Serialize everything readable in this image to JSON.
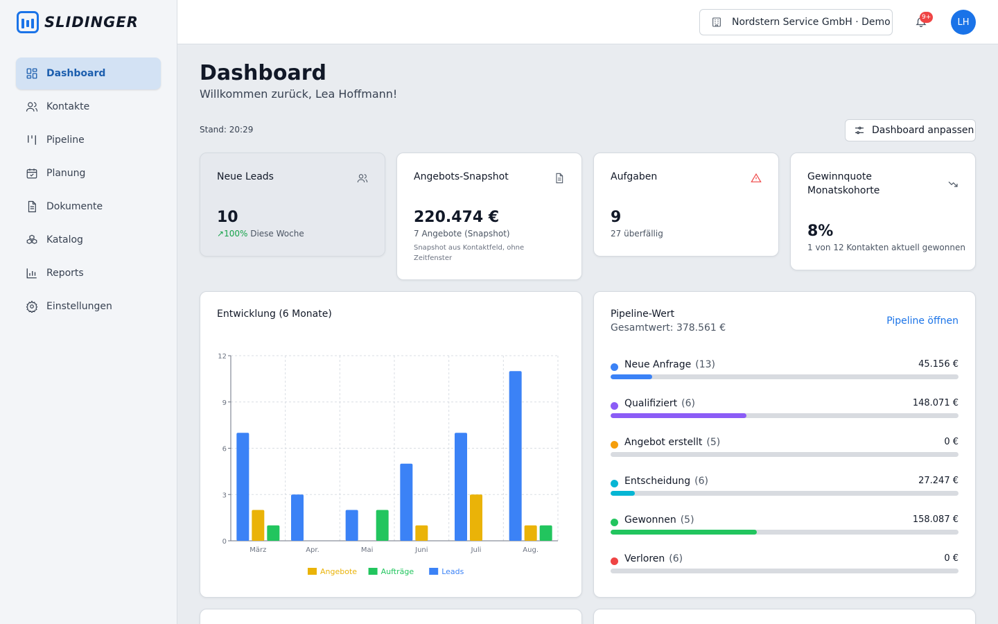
{
  "app": {
    "name": "SLIDINGER"
  },
  "colors": {
    "accent": "#1a73e8",
    "leads": "#3b82f6",
    "angebote": "#eab308",
    "auftraege": "#22c55e"
  },
  "sidebar": {
    "items": [
      {
        "label": "Dashboard",
        "icon": "dashboard-icon",
        "active": true
      },
      {
        "label": "Kontakte",
        "icon": "contacts-icon"
      },
      {
        "label": "Pipeline",
        "icon": "pipeline-icon"
      },
      {
        "label": "Planung",
        "icon": "calendar-icon"
      },
      {
        "label": "Dokumente",
        "icon": "document-icon"
      },
      {
        "label": "Katalog",
        "icon": "catalog-icon"
      },
      {
        "label": "Reports",
        "icon": "reports-icon"
      },
      {
        "label": "Einstellungen",
        "icon": "gear-icon"
      }
    ]
  },
  "topbar": {
    "company": "Nordstern Service GmbH · Demo",
    "notifications_badge": "9+",
    "avatar_initials": "LH"
  },
  "header": {
    "title": "Dashboard",
    "welcome": "Willkommen zurück, Lea Hoffmann!",
    "stand": "Stand: 20:29",
    "customize_label": "Dashboard anpassen"
  },
  "kpis": [
    {
      "title": "Neue Leads",
      "value": "10",
      "trend": "100%",
      "sub": "Diese Woche",
      "icon": "users-icon"
    },
    {
      "title": "Angebots-Snapshot",
      "value": "220.474 €",
      "sub": "7 Angebote (Snapshot)",
      "note": "Snapshot aus Kontaktfeld, ohne Zeitfenster",
      "icon": "document-icon"
    },
    {
      "title": "Aufgaben",
      "value": "9",
      "sub": "27 überfällig",
      "icon": "warning-icon"
    },
    {
      "title": "Gewinnquote Monatskohorte",
      "value": "8%",
      "sub": "1 von 12 Kontakten aktuell gewonnen",
      "icon": "trend-down-icon"
    }
  ],
  "chart": {
    "title": "Entwicklung (6 Monate)"
  },
  "chart_data": {
    "type": "bar",
    "categories": [
      "März",
      "Apr.",
      "Mai",
      "Juni",
      "Juli",
      "Aug."
    ],
    "series": [
      {
        "name": "Leads",
        "color": "#3b82f6",
        "values": [
          7,
          3,
          2,
          5,
          7,
          11
        ]
      },
      {
        "name": "Angebote",
        "color": "#eab308",
        "values": [
          2,
          0,
          0,
          1,
          3,
          1
        ]
      },
      {
        "name": "Aufträge",
        "color": "#22c55e",
        "values": [
          1,
          0,
          2,
          0,
          0,
          1
        ]
      }
    ],
    "legend_order": [
      "Angebote",
      "Aufträge",
      "Leads"
    ],
    "ylim": [
      0,
      12
    ],
    "yticks": [
      0,
      3,
      6,
      9,
      12
    ],
    "grid": true,
    "legend_position": "bottom"
  },
  "pipeline": {
    "title": "Pipeline-Wert",
    "total": "Gesamtwert: 378.561 €",
    "link": "Pipeline öffnen",
    "stages": [
      {
        "name": "Neue Anfrage",
        "count": "(13)",
        "value": "45.156 €",
        "color": "#3b82f6",
        "share": 0.12
      },
      {
        "name": "Qualifiziert",
        "count": "(6)",
        "value": "148.071 €",
        "color": "#8b5cf6",
        "share": 0.39
      },
      {
        "name": "Angebot erstellt",
        "count": "(5)",
        "value": "0 €",
        "color": "#f59e0b",
        "share": 0
      },
      {
        "name": "Entscheidung",
        "count": "(6)",
        "value": "27.247 €",
        "color": "#06b6d4",
        "share": 0.07
      },
      {
        "name": "Gewonnen",
        "count": "(5)",
        "value": "158.087 €",
        "color": "#22c55e",
        "share": 0.42
      },
      {
        "name": "Verloren",
        "count": "(6)",
        "value": "0 €",
        "color": "#ef4444",
        "share": 0
      }
    ]
  }
}
